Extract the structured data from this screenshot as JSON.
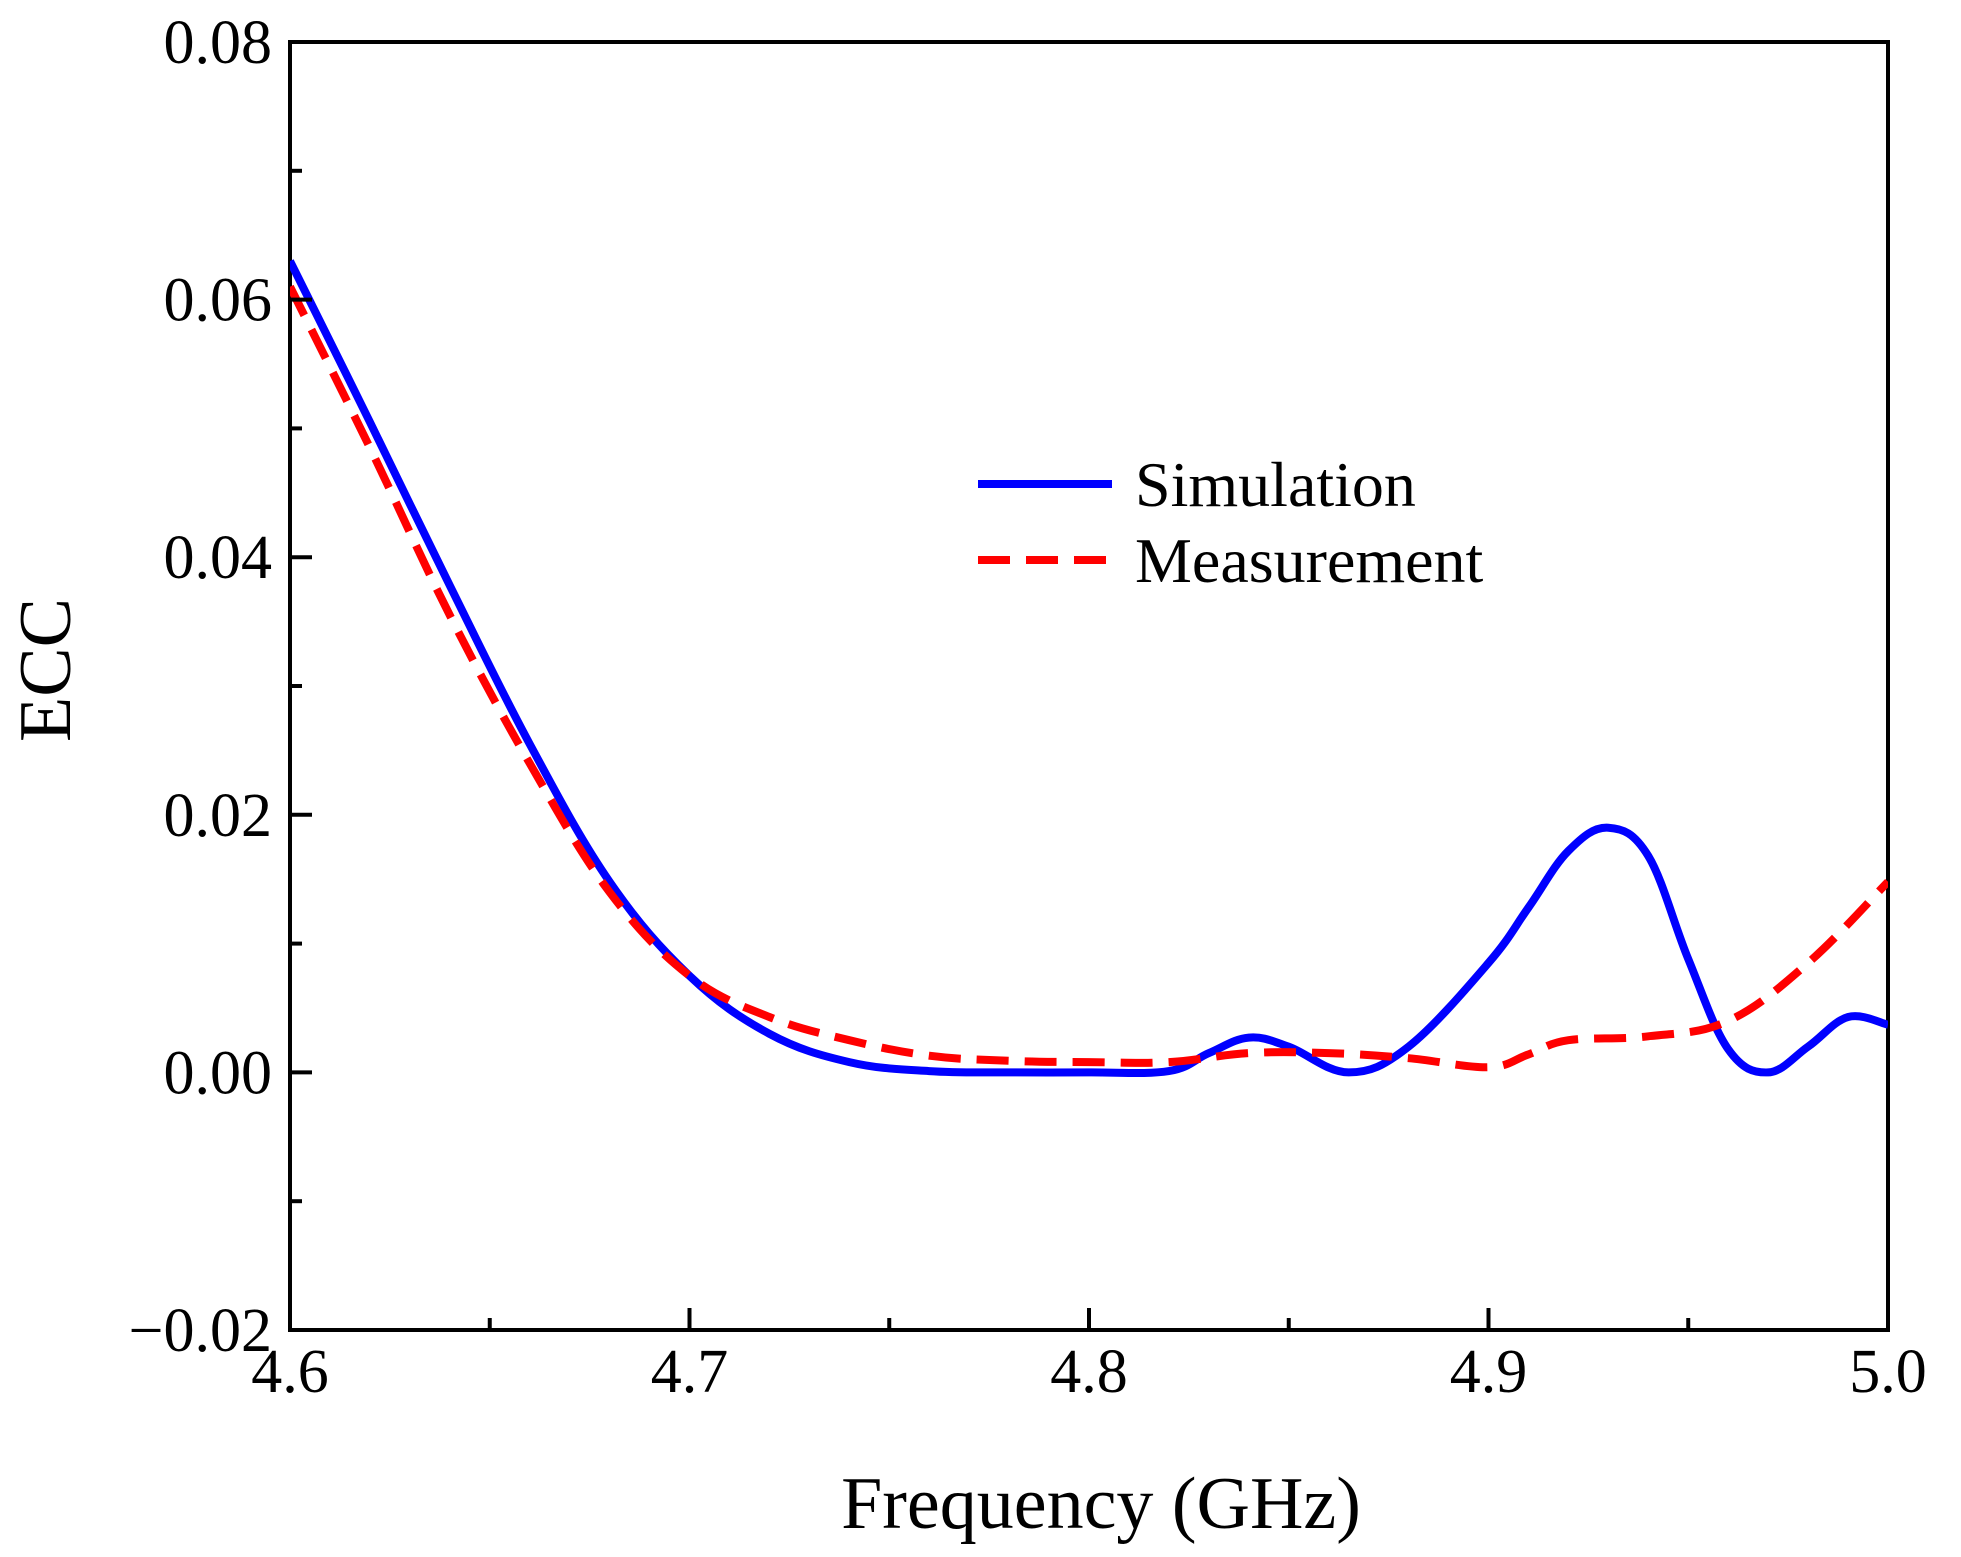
{
  "chart_data": {
    "type": "line",
    "title": "",
    "xlabel": "Frequency (GHz)",
    "ylabel": "ECC",
    "xlim": [
      4.6,
      5.0
    ],
    "ylim": [
      -0.02,
      0.08
    ],
    "xticks": [
      4.6,
      4.7,
      4.8,
      4.9,
      5.0
    ],
    "xtick_labels": [
      "4.6",
      "4.7",
      "4.8",
      "4.9",
      "5.0"
    ],
    "yticks": [
      -0.02,
      0.0,
      0.02,
      0.04,
      0.06,
      0.08
    ],
    "ytick_labels": [
      "−0.02",
      "0.00",
      "0.02",
      "0.04",
      "0.06",
      "0.08"
    ],
    "grid": false,
    "legend": "center-right",
    "series": [
      {
        "name": "Simulation",
        "color": "#0000ff",
        "style": "solid",
        "x": [
          4.6,
          4.62,
          4.64,
          4.66,
          4.68,
          4.7,
          4.72,
          4.74,
          4.76,
          4.78,
          4.8,
          4.82,
          4.83,
          4.84,
          4.85,
          4.865,
          4.88,
          4.9,
          4.91,
          4.92,
          4.93,
          4.94,
          4.95,
          4.96,
          4.97,
          4.98,
          4.99,
          5.0
        ],
        "y": [
          0.063,
          0.0505,
          0.0378,
          0.0255,
          0.0148,
          0.0075,
          0.003,
          0.0008,
          0.0001,
          0.0,
          0.0,
          0.0001,
          0.0015,
          0.0027,
          0.002,
          0.0,
          0.002,
          0.0085,
          0.0128,
          0.0172,
          0.019,
          0.0168,
          0.0088,
          0.0018,
          0.0,
          0.002,
          0.0043,
          0.0037
        ]
      },
      {
        "name": "Measurement",
        "color": "#ff0000",
        "style": "dashed",
        "x": [
          4.6,
          4.62,
          4.64,
          4.66,
          4.68,
          4.7,
          4.72,
          4.74,
          4.76,
          4.78,
          4.8,
          4.82,
          4.84,
          4.86,
          4.88,
          4.9,
          4.91,
          4.92,
          4.94,
          4.96,
          4.98,
          5.0
        ],
        "y": [
          0.061,
          0.0485,
          0.0355,
          0.024,
          0.014,
          0.0075,
          0.0043,
          0.0025,
          0.0013,
          0.0009,
          0.0008,
          0.0008,
          0.0015,
          0.0015,
          0.0011,
          0.0004,
          0.0014,
          0.0025,
          0.0028,
          0.004,
          0.0085,
          0.0148
        ]
      }
    ]
  }
}
